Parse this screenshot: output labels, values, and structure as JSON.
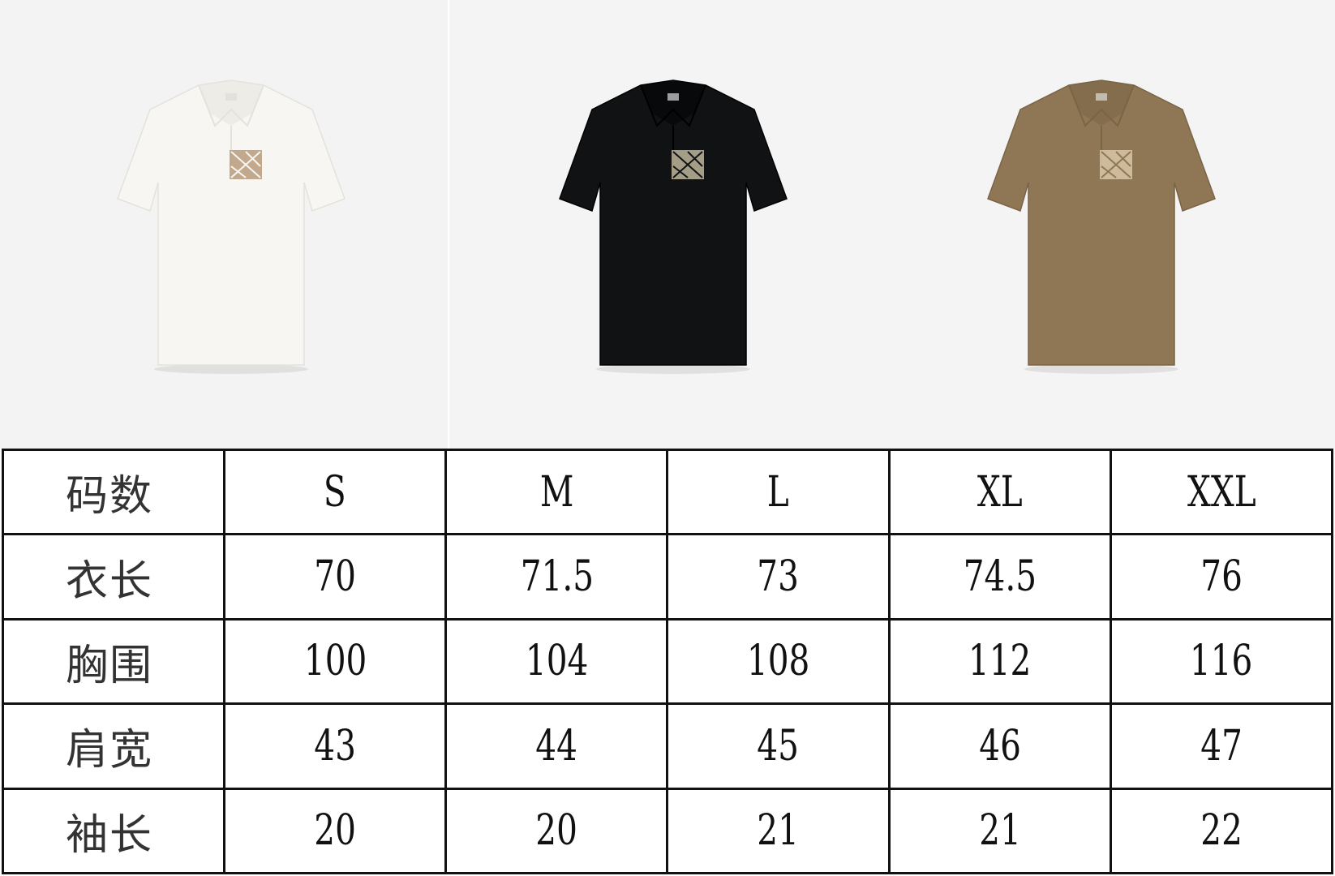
{
  "products": [
    {
      "color_name": "white",
      "body_color": "#f7f6f2",
      "shade": "#e4e2dc",
      "badge_color": "#b89a7a"
    },
    {
      "color_name": "black",
      "body_color": "#111214",
      "shade": "#000000",
      "badge_color": "#bfb79a"
    },
    {
      "color_name": "tan",
      "body_color": "#8f7755",
      "shade": "#7a6446",
      "badge_color": "#d9c7a8"
    }
  ],
  "size_table": {
    "header": [
      "码数",
      "S",
      "M",
      "L",
      "XL",
      "XXL"
    ],
    "rows": [
      [
        "衣长",
        "70",
        "71.5",
        "73",
        "74.5",
        "76"
      ],
      [
        "胸围",
        "100",
        "104",
        "108",
        "112",
        "116"
      ],
      [
        "肩宽",
        "43",
        "44",
        "45",
        "46",
        "47"
      ],
      [
        "袖长",
        "20",
        "20",
        "21",
        "21",
        "22"
      ]
    ]
  }
}
